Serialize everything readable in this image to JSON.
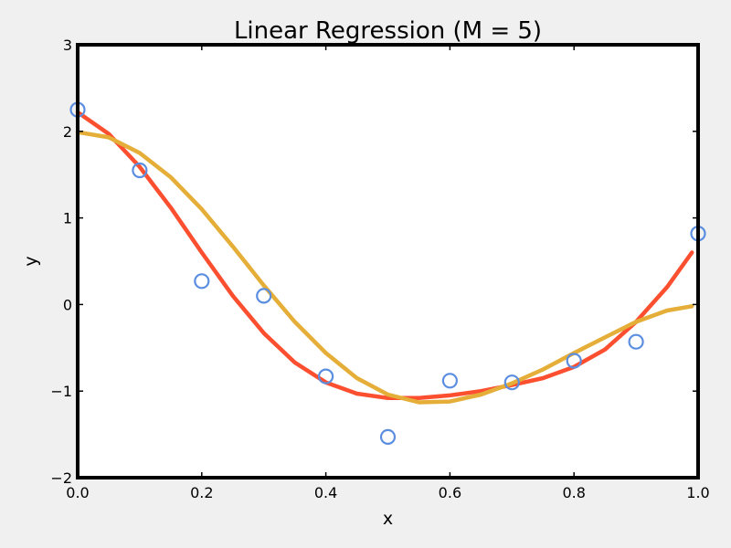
{
  "chart_data": {
    "type": "line",
    "title": "Linear Regression (M = 5)",
    "xlabel": "x",
    "ylabel": "y",
    "xlim": [
      0.0,
      1.0
    ],
    "ylim": [
      -2,
      3
    ],
    "grid": false,
    "legend": "none",
    "x_ticks": [
      "0.0",
      "0.2",
      "0.4",
      "0.6",
      "0.8",
      "1.0"
    ],
    "y_ticks": [
      "−2",
      "−1",
      "0",
      "1",
      "2",
      "3"
    ],
    "scatter": {
      "color": "#5b8ee0",
      "x": [
        0.0,
        0.1,
        0.2,
        0.3,
        0.4,
        0.5,
        0.6,
        0.7,
        0.8,
        0.9,
        1.0
      ],
      "y": [
        2.25,
        1.55,
        0.27,
        0.1,
        -0.83,
        -1.53,
        -0.88,
        -0.9,
        -0.65,
        -0.43,
        0.82
      ]
    },
    "series": [
      {
        "color": "#fc4f30",
        "x": [
          0.0,
          0.05,
          0.1,
          0.15,
          0.2,
          0.25,
          0.3,
          0.35,
          0.4,
          0.45,
          0.5,
          0.55,
          0.6,
          0.65,
          0.7,
          0.75,
          0.8,
          0.85,
          0.9,
          0.95,
          0.99
        ],
        "y": [
          2.22,
          1.97,
          1.59,
          1.12,
          0.6,
          0.1,
          -0.33,
          -0.67,
          -0.9,
          -1.03,
          -1.08,
          -1.08,
          -1.05,
          -1.0,
          -0.93,
          -0.85,
          -0.72,
          -0.52,
          -0.2,
          0.2,
          0.6
        ]
      },
      {
        "color": "#e5ae38",
        "x": [
          0.0,
          0.05,
          0.1,
          0.15,
          0.2,
          0.25,
          0.3,
          0.35,
          0.4,
          0.45,
          0.5,
          0.55,
          0.6,
          0.65,
          0.7,
          0.75,
          0.8,
          0.85,
          0.9,
          0.95,
          0.99
        ],
        "y": [
          1.99,
          1.93,
          1.75,
          1.47,
          1.1,
          0.67,
          0.22,
          -0.2,
          -0.56,
          -0.85,
          -1.04,
          -1.13,
          -1.12,
          -1.04,
          -0.91,
          -0.75,
          -0.56,
          -0.38,
          -0.2,
          -0.07,
          -0.02
        ]
      }
    ]
  }
}
